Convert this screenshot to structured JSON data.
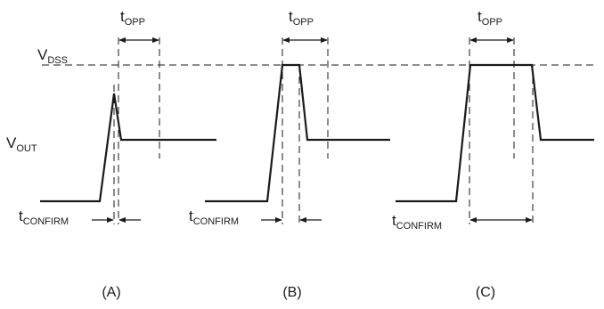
{
  "labels": {
    "vdss_main": "V",
    "vdss_sub": "DSS",
    "vout_main": "V",
    "vout_sub": "OUT",
    "topp_main": "t",
    "topp_sub": "OPP",
    "tconfirm_main": "t",
    "tconfirm_sub": "CONFIRM"
  },
  "panels": [
    "(A)",
    "(B)",
    "(C)"
  ]
}
